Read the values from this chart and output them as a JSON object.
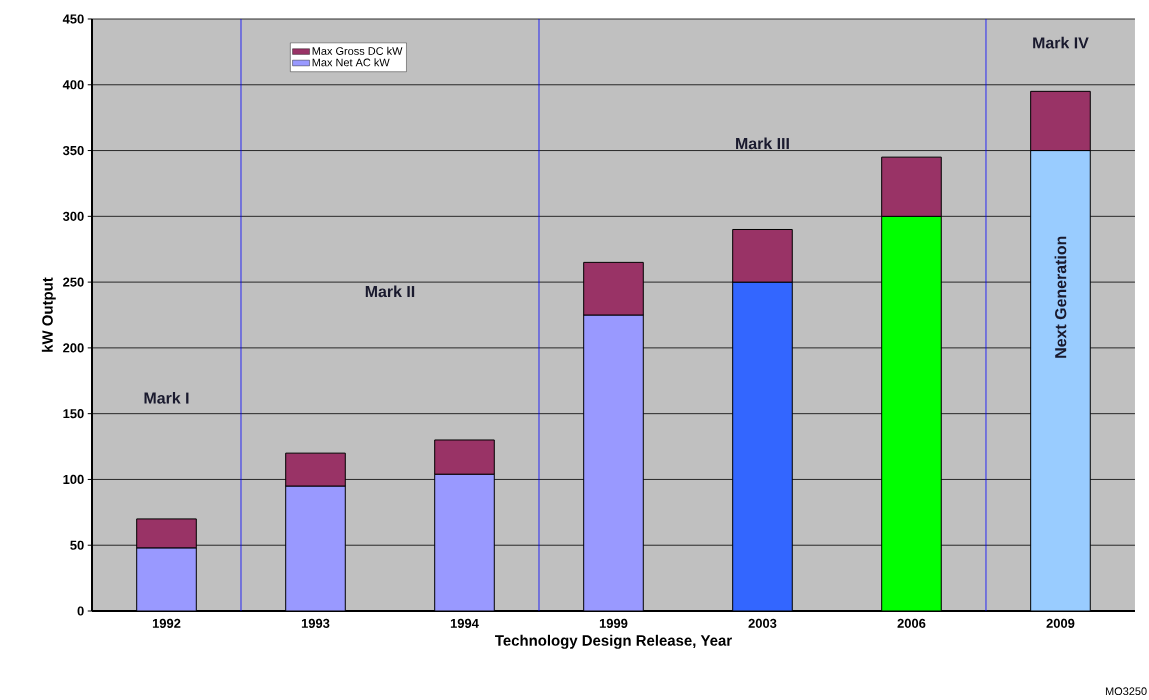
{
  "chart_data": {
    "type": "bar",
    "stacked": true,
    "xlabel": "Technology Design Release, Year",
    "ylabel": "kW Output",
    "categories": [
      "1992",
      "1993",
      "1994",
      "1999",
      "2003",
      "2006",
      "2009"
    ],
    "series": [
      {
        "name": "Max Net AC kW",
        "colors": [
          "#9999ff",
          "#9999ff",
          "#9999ff",
          "#9999ff",
          "#3366ff",
          "#00ff00",
          "#99ccff"
        ],
        "values": [
          48,
          95,
          104,
          225,
          250,
          300,
          350
        ]
      },
      {
        "name": "Max Gross DC kW",
        "color": "#993366",
        "values": [
          22,
          25,
          26,
          40,
          40,
          45,
          45
        ]
      }
    ],
    "ylim": [
      0,
      450
    ],
    "yticks": [
      0,
      50,
      100,
      150,
      200,
      250,
      300,
      350,
      400,
      450
    ],
    "grid": "y",
    "legend": "top left",
    "bands": [
      {
        "axis": "x",
        "from": "1992",
        "to": "1992",
        "label": "Mark I",
        "color": "#c0c0c0"
      },
      {
        "axis": "x",
        "from": "1993",
        "to": "1994",
        "label": "Mark II",
        "color": "#c0c0c0"
      },
      {
        "axis": "x",
        "from": "1999",
        "to": "2006",
        "label": "Mark III",
        "color": "#c0c0c0"
      },
      {
        "axis": "x",
        "from": "2009",
        "to": "2009",
        "label": "Mark IV",
        "color": "#c0c0c0"
      }
    ],
    "annotations": [
      "Next Generation",
      "MO3250"
    ]
  }
}
